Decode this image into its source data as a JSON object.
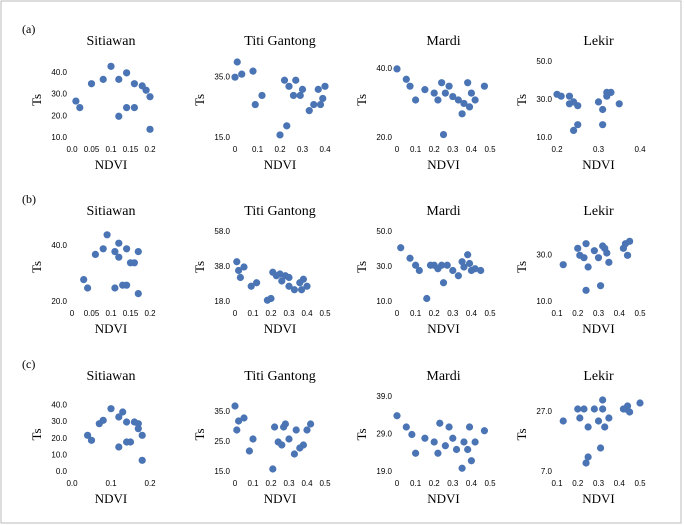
{
  "chart_data": [
    {
      "type": "scatter",
      "panel": "(a)",
      "title": "Sitiawan",
      "x_label": "NDVI",
      "y_label": "Ts",
      "color": "#4a74b4",
      "x": [
        0.01,
        0.02,
        0.05,
        0.08,
        0.1,
        0.12,
        0.12,
        0.14,
        0.14,
        0.16,
        0.16,
        0.18,
        0.19,
        0.2,
        0.2
      ],
      "values": [
        27,
        24,
        35,
        37,
        43,
        20,
        37,
        40,
        24,
        24,
        35,
        34,
        32,
        29,
        14
      ],
      "xlim": [
        0,
        0.2
      ],
      "ylim": [
        10,
        45
      ],
      "xticks": [
        {
          "value": 0,
          "label": "0.0"
        },
        0.05,
        0.1,
        0.15,
        0.2
      ],
      "yticks": [
        {
          "value": 10,
          "label": "10.0"
        },
        {
          "value": 20,
          "label": "20.0"
        },
        {
          "value": 30,
          "label": "30.0"
        },
        {
          "value": 40,
          "label": "40.0"
        }
      ]
    },
    {
      "type": "scatter",
      "title": "Titi Gantong",
      "x_label": "NDVI",
      "y_label": "Ts",
      "color": "#4a74b4",
      "x": [
        0.01,
        0.0,
        0.03,
        0.08,
        0.09,
        0.12,
        0.2,
        0.22,
        0.23,
        0.24,
        0.26,
        0.27,
        0.29,
        0.3,
        0.33,
        0.35,
        0.37,
        0.38,
        0.39,
        0.4
      ],
      "values": [
        40,
        35,
        36,
        37,
        26,
        29,
        16,
        34,
        19,
        32,
        29,
        34,
        29,
        31,
        24,
        26,
        31,
        26,
        28,
        32
      ],
      "xlim": [
        0,
        0.4
      ],
      "ylim": [
        15,
        40
      ],
      "xticks": [
        0,
        0.1,
        0.2,
        0.3,
        0.4
      ],
      "yticks": [
        {
          "value": 15,
          "label": "15.0"
        },
        {
          "value": 35,
          "label": "35.0"
        }
      ]
    },
    {
      "type": "scatter",
      "title": "Mardi",
      "x_label": "NDVI",
      "y_label": "Ts",
      "color": "#4a74b4",
      "x": [
        0.0,
        0.05,
        0.07,
        0.1,
        0.15,
        0.2,
        0.22,
        0.24,
        0.25,
        0.26,
        0.28,
        0.3,
        0.33,
        0.35,
        0.36,
        0.38,
        0.39,
        0.4,
        0.42,
        0.47
      ],
      "values": [
        40,
        37,
        35,
        31,
        34,
        33,
        31,
        36,
        21,
        33,
        35,
        32,
        31,
        27,
        30,
        36,
        29,
        33,
        31,
        35
      ],
      "xlim": [
        0,
        0.5
      ],
      "ylim": [
        20,
        42
      ],
      "xticks": [
        0,
        0.1,
        0.2,
        0.3,
        0.4,
        0.5
      ],
      "yticks": [
        {
          "value": 20,
          "label": "20.0"
        },
        {
          "value": 40,
          "label": "40.0"
        }
      ]
    },
    {
      "type": "scatter",
      "title": "Lekir",
      "x_label": "NDVI",
      "y_label": "Ts",
      "color": "#4a74b4",
      "x": [
        0.2,
        0.21,
        0.23,
        0.23,
        0.24,
        0.24,
        0.25,
        0.25,
        0.3,
        0.31,
        0.31,
        0.32,
        0.32,
        0.33,
        0.35
      ],
      "values": [
        33,
        32,
        32,
        28,
        29,
        14,
        17,
        27,
        29,
        17,
        25,
        32,
        34,
        34,
        28
      ],
      "xlim": [
        0.2,
        0.4
      ],
      "ylim": [
        10,
        50
      ],
      "xticks": [
        0.2,
        0.3,
        0.4
      ],
      "yticks": [
        {
          "value": 10,
          "label": "10.0"
        },
        {
          "value": 30,
          "label": "30.0"
        },
        {
          "value": 50,
          "label": "50.0"
        }
      ]
    },
    {
      "type": "scatter",
      "panel": "(b)",
      "title": "Sitiawan",
      "x_label": "NDVI",
      "y_label": "Ts",
      "color": "#4a74b4",
      "x": [
        0.03,
        0.04,
        0.06,
        0.08,
        0.09,
        0.11,
        0.11,
        0.12,
        0.12,
        0.13,
        0.14,
        0.14,
        0.15,
        0.16,
        0.17,
        0.17
      ],
      "values": [
        28,
        25,
        37,
        39,
        44,
        25,
        38,
        36,
        41,
        26,
        26,
        39,
        34,
        34,
        38,
        23
      ],
      "xlim": [
        0,
        0.2
      ],
      "ylim": [
        20,
        45
      ],
      "xticks": [
        0,
        0.05,
        0.1,
        0.15,
        0.2
      ],
      "yticks": [
        {
          "value": 20,
          "label": "20.0"
        },
        {
          "value": 40,
          "label": "40.0"
        }
      ]
    },
    {
      "type": "scatter",
      "title": "Titi Gantong",
      "x_label": "NDVI",
      "y_label": "Ts",
      "color": "#4a74b4",
      "x": [
        0.01,
        0.02,
        0.03,
        0.05,
        0.09,
        0.12,
        0.18,
        0.2,
        0.21,
        0.23,
        0.25,
        0.26,
        0.28,
        0.3,
        0.3,
        0.33,
        0.36,
        0.37,
        0.38,
        0.4
      ],
      "values": [
        41,
        36,
        32,
        38,
        27,
        29,
        19,
        20,
        35,
        33,
        34,
        30,
        33,
        27,
        32,
        25,
        29,
        25,
        31,
        27
      ],
      "xlim": [
        0,
        0.5
      ],
      "ylim": [
        18,
        58
      ],
      "xticks": [
        0,
        0.1,
        0.2,
        0.3,
        0.4,
        0.5
      ],
      "yticks": [
        {
          "value": 18,
          "label": "18.0"
        },
        {
          "value": 38,
          "label": "38.0"
        },
        {
          "value": 58,
          "label": "58.0"
        }
      ]
    },
    {
      "type": "scatter",
      "title": "Mardi",
      "x_label": "NDVI",
      "y_label": "Ts",
      "color": "#4a74b4",
      "x": [
        0.02,
        0.07,
        0.1,
        0.12,
        0.16,
        0.18,
        0.2,
        0.22,
        0.24,
        0.25,
        0.27,
        0.3,
        0.33,
        0.35,
        0.36,
        0.38,
        0.39,
        0.4,
        0.42,
        0.45
      ],
      "values": [
        41,
        35,
        31,
        28,
        12,
        31,
        31,
        29,
        31,
        21,
        31,
        28,
        25,
        33,
        30,
        37,
        32,
        28,
        29,
        28
      ],
      "xlim": [
        0,
        0.5
      ],
      "ylim": [
        10,
        50
      ],
      "xticks": [
        0,
        0.1,
        0.2,
        0.3,
        0.4,
        0.5
      ],
      "yticks": [
        {
          "value": 10,
          "label": "10.0"
        },
        {
          "value": 30,
          "label": "30.0"
        },
        {
          "value": 50,
          "label": "50.0"
        }
      ]
    },
    {
      "type": "scatter",
      "title": "Lekir",
      "x_label": "NDVI",
      "y_label": "Ts",
      "color": "#4a74b4",
      "x": [
        0.13,
        0.2,
        0.21,
        0.23,
        0.24,
        0.24,
        0.25,
        0.28,
        0.3,
        0.31,
        0.32,
        0.33,
        0.34,
        0.35,
        0.42,
        0.43,
        0.44,
        0.45
      ],
      "values": [
        26,
        33,
        30,
        29,
        35,
        15,
        25,
        32,
        29,
        17,
        34,
        33,
        31,
        27,
        33,
        35,
        30,
        36
      ],
      "xlim": [
        0.1,
        0.5
      ],
      "ylim": [
        10,
        40
      ],
      "xticks": [
        0.1,
        0.2,
        0.3,
        0.4,
        0.5
      ],
      "yticks": [
        {
          "value": 10,
          "label": "10.0"
        },
        {
          "value": 30,
          "label": "30.0"
        }
      ]
    },
    {
      "type": "scatter",
      "panel": "(c)",
      "title": "Sitiawan",
      "x_label": "NDVI",
      "y_label": "Ts",
      "color": "#4a74b4",
      "x": [
        0.04,
        0.05,
        0.07,
        0.08,
        0.1,
        0.12,
        0.12,
        0.13,
        0.14,
        0.14,
        0.15,
        0.16,
        0.17,
        0.18,
        0.18,
        0.17
      ],
      "values": [
        22,
        19,
        29,
        31,
        38,
        15,
        33,
        36,
        18,
        30,
        18,
        30,
        29,
        22,
        7,
        26
      ],
      "xlim": [
        0,
        0.2
      ],
      "ylim": [
        0,
        45
      ],
      "xticks": [
        {
          "value": 0,
          "label": "0.0"
        },
        0.1,
        0.2
      ],
      "yticks": [
        {
          "value": 0,
          "label": "0.0"
        },
        {
          "value": 10,
          "label": "10.0"
        },
        {
          "value": 20,
          "label": "20.0"
        },
        {
          "value": 30,
          "label": "30.0"
        },
        {
          "value": 40,
          "label": "40.0"
        }
      ]
    },
    {
      "type": "scatter",
      "title": "Titi Gantong",
      "x_label": "NDVI",
      "y_label": "Ts",
      "color": "#4a74b4",
      "x": [
        0.0,
        0.01,
        0.02,
        0.05,
        0.08,
        0.1,
        0.21,
        0.22,
        0.24,
        0.26,
        0.27,
        0.28,
        0.3,
        0.33,
        0.34,
        0.36,
        0.38,
        0.4,
        0.42
      ],
      "values": [
        37,
        29,
        32,
        33,
        22,
        26,
        16,
        30,
        25,
        24,
        30,
        31,
        26,
        21,
        29,
        23,
        24,
        29,
        31
      ],
      "xlim": [
        0,
        0.5
      ],
      "ylim": [
        15,
        40
      ],
      "xticks": [
        0,
        0.1,
        0.2,
        0.3,
        0.4,
        0.5
      ],
      "yticks": [
        {
          "value": 15,
          "label": "15.0"
        },
        {
          "value": 25,
          "label": "25.0"
        },
        {
          "value": 35,
          "label": "35.0"
        }
      ]
    },
    {
      "type": "scatter",
      "title": "Mardi",
      "x_label": "NDVI",
      "y_label": "Ts",
      "color": "#4a74b4",
      "x": [
        0.0,
        0.05,
        0.08,
        0.1,
        0.15,
        0.2,
        0.22,
        0.23,
        0.26,
        0.28,
        0.3,
        0.32,
        0.35,
        0.36,
        0.38,
        0.39,
        0.4,
        0.42,
        0.47
      ],
      "values": [
        34,
        31,
        29,
        24,
        28,
        27,
        24,
        32,
        26,
        31,
        28,
        25,
        20,
        27,
        25,
        31,
        22,
        27,
        30
      ],
      "xlim": [
        0,
        0.5
      ],
      "ylim": [
        19,
        39
      ],
      "xticks": [
        0,
        0.1,
        0.2,
        0.3,
        0.4,
        0.5
      ],
      "yticks": [
        {
          "value": 19,
          "label": "19.0"
        },
        {
          "value": 29,
          "label": "29.0"
        },
        {
          "value": 39,
          "label": "39.0"
        }
      ]
    },
    {
      "type": "scatter",
      "title": "Lekir",
      "x_label": "NDVI",
      "y_label": "Ts",
      "color": "#4a74b4",
      "x": [
        0.13,
        0.2,
        0.21,
        0.23,
        0.24,
        0.25,
        0.25,
        0.28,
        0.3,
        0.31,
        0.32,
        0.32,
        0.33,
        0.35,
        0.42,
        0.43,
        0.44,
        0.45,
        0.5
      ],
      "values": [
        24,
        28,
        25,
        28,
        10,
        12,
        22,
        28,
        24,
        15,
        31,
        28,
        22,
        25,
        28,
        28,
        29,
        27,
        30
      ],
      "xlim": [
        0.1,
        0.5
      ],
      "ylim": [
        7,
        32
      ],
      "xticks": [
        0.1,
        0.2,
        0.3,
        0.4,
        0.5
      ],
      "yticks": [
        {
          "value": 7,
          "label": "7.0"
        },
        {
          "value": 27,
          "label": "27.0"
        }
      ]
    }
  ]
}
